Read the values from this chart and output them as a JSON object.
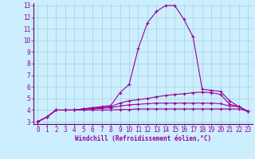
{
  "xlabel": "Windchill (Refroidissement éolien,°C)",
  "background_color": "#cceeff",
  "line_color": "#990099",
  "grid_color": "#99cccc",
  "spine_color": "#660066",
  "xlim": [
    -0.5,
    23.5
  ],
  "ylim": [
    2.8,
    13.2
  ],
  "xticks": [
    0,
    1,
    2,
    3,
    4,
    5,
    6,
    7,
    8,
    9,
    10,
    11,
    12,
    13,
    14,
    15,
    16,
    17,
    18,
    19,
    20,
    21,
    22,
    23
  ],
  "yticks": [
    3,
    4,
    5,
    6,
    7,
    8,
    9,
    10,
    11,
    12,
    13
  ],
  "series": [
    [
      3.0,
      3.4,
      4.0,
      4.0,
      4.0,
      4.1,
      4.2,
      4.3,
      4.4,
      5.5,
      6.2,
      9.3,
      11.5,
      12.5,
      13.0,
      13.0,
      11.8,
      10.3,
      5.8,
      5.7,
      5.6,
      4.8,
      4.3,
      3.9
    ],
    [
      3.0,
      3.4,
      4.0,
      4.0,
      4.0,
      4.1,
      4.2,
      4.2,
      4.3,
      4.6,
      4.8,
      4.9,
      5.0,
      5.15,
      5.25,
      5.35,
      5.4,
      5.5,
      5.55,
      5.5,
      5.35,
      4.5,
      4.3,
      3.9
    ],
    [
      3.0,
      3.4,
      4.0,
      4.0,
      4.0,
      4.1,
      4.1,
      4.15,
      4.2,
      4.35,
      4.45,
      4.5,
      4.55,
      4.6,
      4.6,
      4.6,
      4.6,
      4.6,
      4.6,
      4.6,
      4.55,
      4.35,
      4.3,
      3.9
    ],
    [
      3.0,
      3.4,
      4.0,
      4.0,
      4.0,
      4.0,
      4.0,
      4.0,
      4.0,
      4.05,
      4.05,
      4.1,
      4.1,
      4.1,
      4.1,
      4.1,
      4.1,
      4.1,
      4.1,
      4.1,
      4.1,
      4.1,
      4.1,
      3.9
    ]
  ],
  "tick_fontsize": 5.5,
  "xlabel_fontsize": 5.5,
  "linewidth": 0.8,
  "markersize": 3.0,
  "markeredgewidth": 0.8
}
